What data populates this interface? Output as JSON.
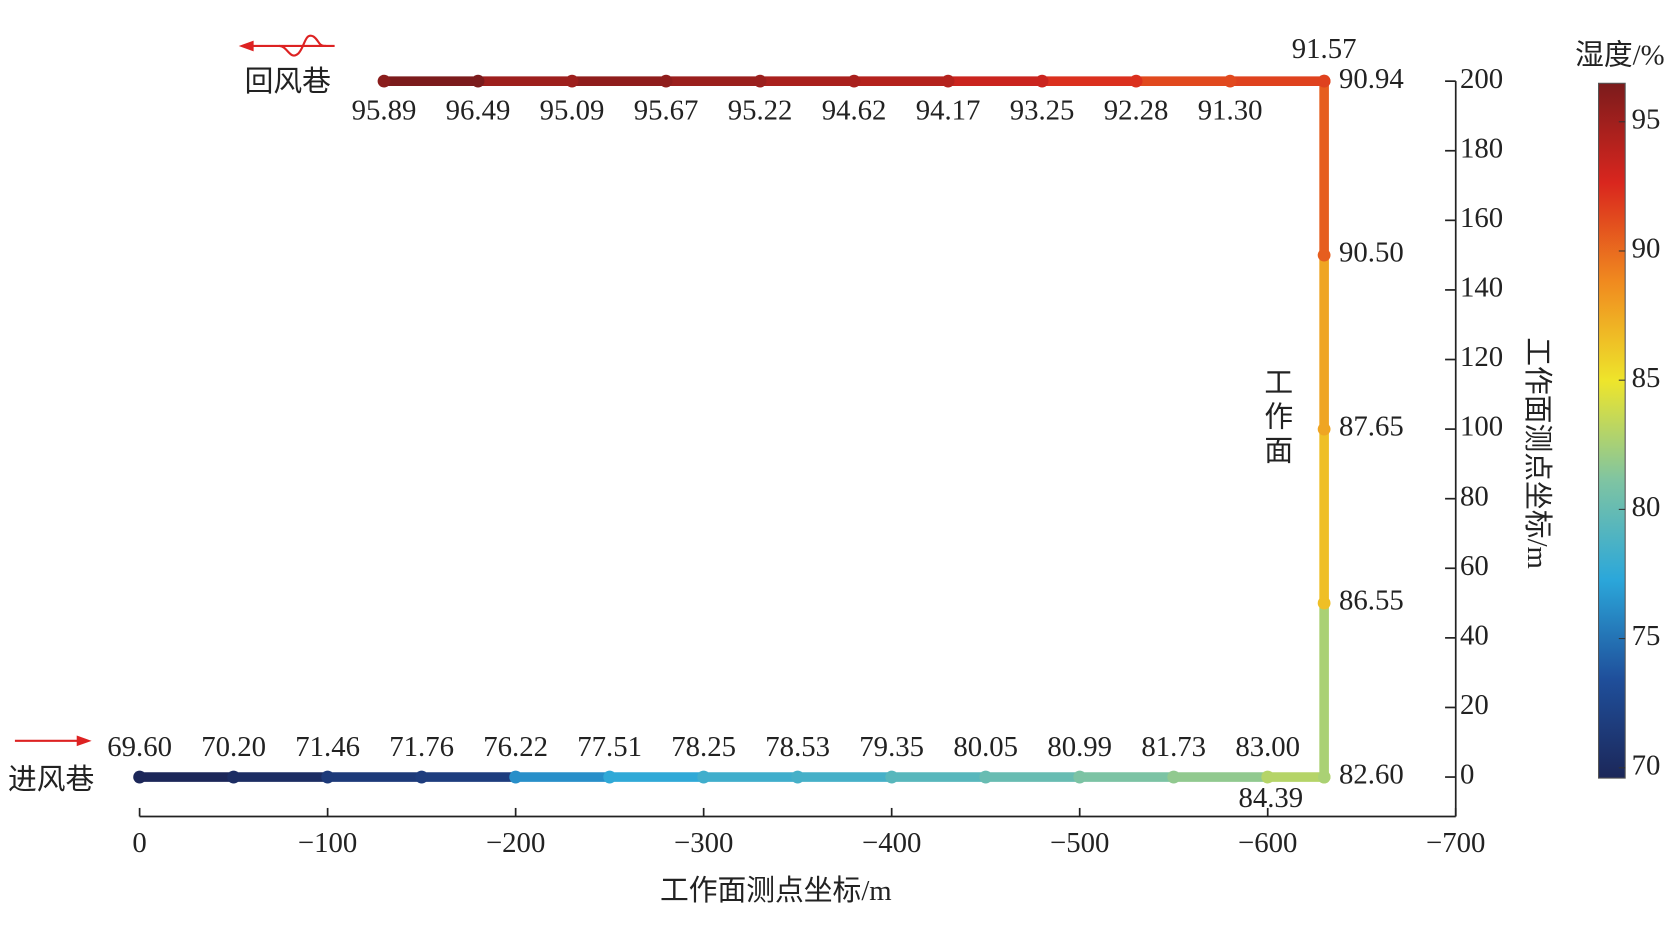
{
  "chart_data": {
    "type": "roadway",
    "xlabel": "工作面测点坐标/m",
    "ylabel": "工作面测点坐标/m",
    "colorbar_title": "湿度/%",
    "xlim": [
      0,
      -700
    ],
    "xticks": [
      0,
      {
        "value": -100,
        "label": "−100"
      },
      {
        "value": -200,
        "label": "−200"
      },
      {
        "value": -300,
        "label": "−300"
      },
      {
        "value": -400,
        "label": "−400"
      },
      {
        "value": -500,
        "label": "−500"
      },
      {
        "value": -600,
        "label": "−600"
      },
      {
        "value": -700,
        "label": "−700"
      }
    ],
    "ylim": [
      -11,
      200
    ],
    "yticks": [
      0,
      20,
      40,
      60,
      80,
      100,
      120,
      140,
      160,
      180,
      200
    ],
    "clim": [
      69.6,
      96.49
    ],
    "cticks": [
      70,
      75,
      80,
      85,
      90,
      95
    ],
    "colormap": [
      "#1c2759",
      "#1f4f9b",
      "#2ba7da",
      "#7fc4a2",
      "#eee52b",
      "#f08a1f",
      "#d9261e",
      "#7b1b1c"
    ],
    "segments": [
      {
        "name": "进风巷",
        "orientation": "horizontal",
        "x": [
          0,
          -50,
          -100,
          -150,
          -200,
          -250,
          -300,
          -350,
          -400,
          -450,
          -500,
          -550,
          -600,
          -630
        ],
        "values": [
          69.6,
          70.2,
          71.46,
          71.76,
          76.22,
          77.51,
          78.25,
          78.53,
          79.35,
          80.05,
          80.99,
          81.73,
          83.0,
          84.39
        ],
        "value_labels": [
          "69.60",
          "70.20",
          "71.46",
          "71.76",
          "76.22",
          "77.51",
          "78.25",
          "78.53",
          "79.35",
          "80.05",
          "80.99",
          "81.73",
          "83.00",
          "84.39"
        ]
      },
      {
        "name": "工作面",
        "orientation": "vertical",
        "y": [
          0,
          50,
          100,
          150,
          200
        ],
        "values": [
          82.6,
          86.55,
          87.65,
          90.5,
          90.94
        ],
        "value_labels": [
          "82.60",
          "86.55",
          "87.65",
          "90.50",
          "90.94"
        ]
      },
      {
        "name": "回风巷",
        "orientation": "horizontal",
        "x": [
          -630,
          -580,
          -530,
          -480,
          -430,
          -380,
          -330,
          -280,
          -230,
          -180,
          -130
        ],
        "values": [
          91.57,
          91.3,
          92.28,
          93.25,
          94.17,
          94.62,
          95.22,
          95.67,
          95.09,
          96.49,
          95.89
        ],
        "value_labels": [
          "91.57",
          "91.30",
          "92.28",
          "93.25",
          "94.17",
          "94.62",
          "95.22",
          "95.67",
          "95.09",
          "96.49",
          "95.89"
        ]
      }
    ]
  }
}
